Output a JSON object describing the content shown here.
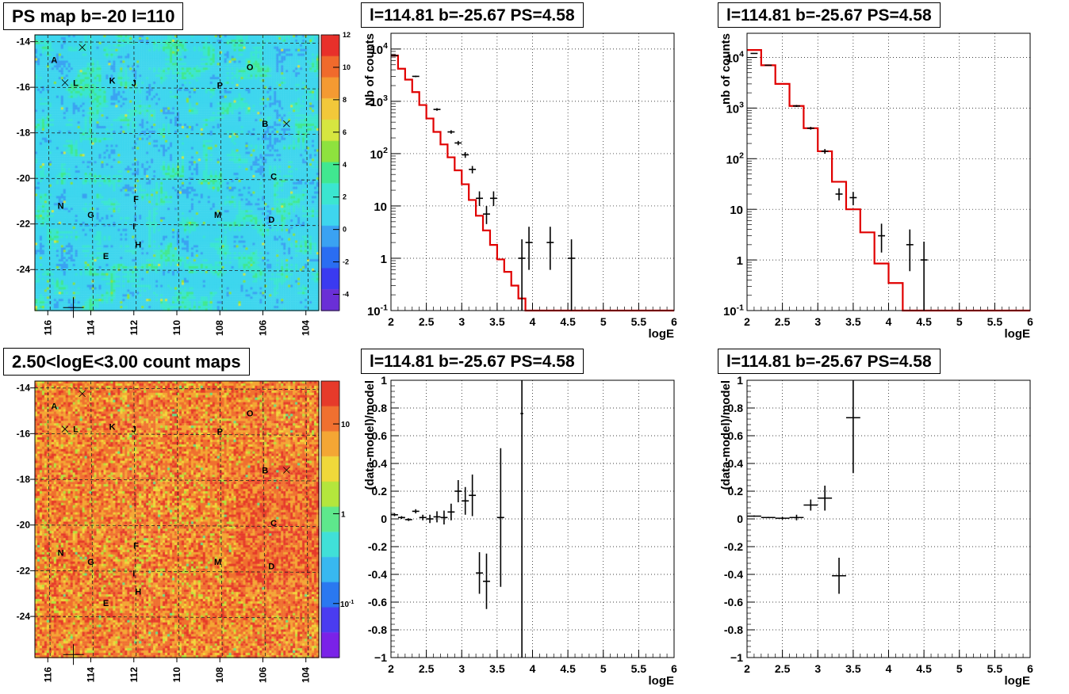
{
  "panels": {
    "ps_map": {
      "title": "PS map b=-20 l=110"
    },
    "count_map": {
      "title": "2.50<logE<3.00 count maps"
    },
    "spec1": {
      "title": "l=114.81 b=-25.67 PS=4.58"
    },
    "spec2": {
      "title": "l=114.81 b=-25.67 PS=4.58"
    },
    "resid1": {
      "title": "l=114.81 b=-25.67 PS=4.58"
    },
    "resid2": {
      "title": "l=114.81 b=-25.67 PS=4.58"
    }
  },
  "map_axes": {
    "x_ticks": [
      "116",
      "114",
      "112",
      "110",
      "108",
      "106",
      "104"
    ],
    "y_ticks": [
      "-14",
      "-16",
      "-18",
      "-20",
      "-22",
      "-24"
    ],
    "ps_colorbar_ticks": [
      "12",
      "10",
      "8",
      "6",
      "4",
      "2",
      "0",
      "-2",
      "-4"
    ],
    "count_colorbar_ticks": [
      "10",
      "1",
      "10"
    ],
    "count_colorbar_exp": "-1",
    "sources": [
      {
        "label": "A",
        "l": 115.7,
        "b": -14.8
      },
      {
        "label": "L",
        "l": 114.7,
        "b": -15.8
      },
      {
        "label": "K",
        "l": 113.0,
        "b": -15.7
      },
      {
        "label": "J",
        "l": 112.0,
        "b": -15.8
      },
      {
        "label": "P",
        "l": 108.0,
        "b": -15.9
      },
      {
        "label": "O",
        "l": 106.6,
        "b": -15.1
      },
      {
        "label": "B",
        "l": 105.9,
        "b": -17.6
      },
      {
        "label": "C",
        "l": 105.5,
        "b": -19.9
      },
      {
        "label": "N",
        "l": 115.4,
        "b": -21.2
      },
      {
        "label": "G",
        "l": 114.0,
        "b": -21.6
      },
      {
        "label": "F",
        "l": 111.9,
        "b": -20.9
      },
      {
        "label": "M",
        "l": 108.1,
        "b": -21.6
      },
      {
        "label": "D",
        "l": 105.6,
        "b": -21.8
      },
      {
        "label": "I",
        "l": 112.0,
        "b": -22.1
      },
      {
        "label": "H",
        "l": 111.8,
        "b": -22.9
      },
      {
        "label": "E",
        "l": 113.3,
        "b": -23.4
      }
    ]
  },
  "chart_data": [
    {
      "type": "line",
      "panel": "spec1",
      "xlabel": "logE",
      "ylabel": "Nb of counts",
      "log_y": true,
      "xlim": [
        2,
        6
      ],
      "ylim": [
        0.1,
        20000
      ],
      "x_ticks": [
        "2",
        "2.5",
        "3",
        "3.5",
        "4",
        "4.5",
        "5",
        "5.5",
        "6"
      ],
      "y_ticks": [
        "10^4",
        "10^3",
        "10^2",
        "10",
        "1",
        "10^-1"
      ],
      "model_step_edges": [
        2.0,
        2.1,
        2.2,
        2.3,
        2.4,
        2.5,
        2.6,
        2.7,
        2.8,
        2.9,
        3.0,
        3.1,
        3.2,
        3.3,
        3.4,
        3.5,
        3.6,
        3.7,
        3.8,
        3.9,
        4.0,
        4.1,
        4.2,
        4.3,
        6.0
      ],
      "model_step_values": [
        7500,
        4200,
        2600,
        1500,
        850,
        470,
        260,
        150,
        85,
        48,
        26,
        13,
        6.5,
        3.4,
        1.8,
        0.95,
        0.55,
        0.3,
        0.17,
        0.1,
        0.1,
        0.1,
        0.1,
        0.1
      ],
      "data_points": [
        {
          "x": 2.05,
          "y": 7500,
          "err_lo": 200,
          "err_hi": 200
        },
        {
          "x": 2.35,
          "y": 3000,
          "err_lo": 100,
          "err_hi": 100
        },
        {
          "x": 2.65,
          "y": 700,
          "err_lo": 40,
          "err_hi": 40
        },
        {
          "x": 2.85,
          "y": 260,
          "err_lo": 20,
          "err_hi": 20
        },
        {
          "x": 2.95,
          "y": 160,
          "err_lo": 15,
          "err_hi": 15
        },
        {
          "x": 3.05,
          "y": 95,
          "err_lo": 12,
          "err_hi": 12
        },
        {
          "x": 3.15,
          "y": 50,
          "err_lo": 8,
          "err_hi": 8
        },
        {
          "x": 3.25,
          "y": 14,
          "err_lo": 4,
          "err_hi": 5
        },
        {
          "x": 3.35,
          "y": 7,
          "err_lo": 2.5,
          "err_hi": 3
        },
        {
          "x": 3.45,
          "y": 14,
          "err_lo": 4,
          "err_hi": 5
        },
        {
          "x": 3.85,
          "y": 1,
          "err_lo": 0.9,
          "err_hi": 1.3
        },
        {
          "x": 3.95,
          "y": 2,
          "err_lo": 1.4,
          "err_hi": 2
        },
        {
          "x": 4.25,
          "y": 2,
          "err_lo": 1.4,
          "err_hi": 2
        },
        {
          "x": 4.55,
          "y": 1,
          "err_lo": 0.9,
          "err_hi": 1.3
        }
      ]
    },
    {
      "type": "line",
      "panel": "spec2",
      "xlabel": "logE",
      "ylabel": "nb of counts",
      "log_y": true,
      "xlim": [
        2,
        6
      ],
      "ylim": [
        0.1,
        30000
      ],
      "x_ticks": [
        "2",
        "2.5",
        "3",
        "3.5",
        "4",
        "4.5",
        "5",
        "5.5",
        "6"
      ],
      "y_ticks": [
        "10^4",
        "10^3",
        "10^2",
        "10",
        "1",
        "10^-1"
      ],
      "model_step_edges": [
        2.0,
        2.2,
        2.4,
        2.6,
        2.8,
        3.0,
        3.2,
        3.4,
        3.6,
        3.8,
        4.0,
        4.2,
        6.0
      ],
      "model_step_values": [
        14000,
        7000,
        3000,
        1100,
        400,
        140,
        35,
        10,
        3.5,
        0.85,
        0.35,
        0.1
      ],
      "data_points": [
        {
          "x": 2.1,
          "y": 12000,
          "err_lo": 200,
          "err_hi": 200
        },
        {
          "x": 2.3,
          "y": 7000,
          "err_lo": 150,
          "err_hi": 150
        },
        {
          "x": 2.7,
          "y": 1100,
          "err_lo": 50,
          "err_hi": 50
        },
        {
          "x": 2.9,
          "y": 400,
          "err_lo": 25,
          "err_hi": 25
        },
        {
          "x": 3.1,
          "y": 140,
          "err_lo": 15,
          "err_hi": 15
        },
        {
          "x": 3.3,
          "y": 20,
          "err_lo": 5,
          "err_hi": 6
        },
        {
          "x": 3.5,
          "y": 17,
          "err_lo": 5,
          "err_hi": 5
        },
        {
          "x": 3.9,
          "y": 3,
          "err_lo": 1.6,
          "err_hi": 2.2
        },
        {
          "x": 4.3,
          "y": 2,
          "err_lo": 1.4,
          "err_hi": 2
        },
        {
          "x": 4.5,
          "y": 1,
          "err_lo": 0.9,
          "err_hi": 1.3
        }
      ]
    },
    {
      "type": "scatter",
      "panel": "resid1",
      "xlabel": "logE",
      "ylabel": "(data-model)/model",
      "xlim": [
        2,
        6
      ],
      "ylim": [
        -1,
        1
      ],
      "x_ticks": [
        "2",
        "2.5",
        "3",
        "3.5",
        "4",
        "4.5",
        "5",
        "5.5",
        "6"
      ],
      "y_ticks": [
        "1",
        "0.8",
        "0.6",
        "0.4",
        "0.2",
        "0",
        "-0.2",
        "-0.4",
        "-0.6",
        "-0.8",
        "-1"
      ],
      "data_points": [
        {
          "x": 2.05,
          "y": 0.03,
          "err": 0.01,
          "xerr": 0.05
        },
        {
          "x": 2.15,
          "y": 0.01,
          "err": 0.01,
          "xerr": 0.05
        },
        {
          "x": 2.25,
          "y": -0.005,
          "err": 0.01,
          "xerr": 0.05
        },
        {
          "x": 2.35,
          "y": 0.055,
          "err": 0.015,
          "xerr": 0.05
        },
        {
          "x": 2.45,
          "y": 0.01,
          "err": 0.02,
          "xerr": 0.05
        },
        {
          "x": 2.55,
          "y": 0.0,
          "err": 0.03,
          "xerr": 0.05
        },
        {
          "x": 2.65,
          "y": 0.015,
          "err": 0.04,
          "xerr": 0.05
        },
        {
          "x": 2.75,
          "y": 0.01,
          "err": 0.05,
          "xerr": 0.05
        },
        {
          "x": 2.85,
          "y": 0.05,
          "err": 0.06,
          "xerr": 0.05
        },
        {
          "x": 2.95,
          "y": 0.2,
          "err": 0.08,
          "xerr": 0.05
        },
        {
          "x": 3.05,
          "y": 0.13,
          "err": 0.1,
          "xerr": 0.05
        },
        {
          "x": 3.15,
          "y": 0.17,
          "err": 0.15,
          "xerr": 0.05
        },
        {
          "x": 3.25,
          "y": -0.39,
          "err": 0.15,
          "xerr": 0.05
        },
        {
          "x": 3.35,
          "y": -0.45,
          "err": 0.2,
          "xerr": 0.05
        },
        {
          "x": 3.55,
          "y": 0.01,
          "err": 0.5,
          "xerr": 0.05
        },
        {
          "x": 3.85,
          "y": 0.76,
          "err": 1.8,
          "xerr": 0.02
        }
      ]
    },
    {
      "type": "scatter",
      "panel": "resid2",
      "xlabel": "logE",
      "ylabel": "(data-model)/model",
      "xlim": [
        2,
        6
      ],
      "ylim": [
        -1,
        1
      ],
      "x_ticks": [
        "2",
        "2.5",
        "3",
        "3.5",
        "4",
        "4.5",
        "5",
        "5.5",
        "6"
      ],
      "y_ticks": [
        "1",
        "0.8",
        "0.6",
        "0.4",
        "0.2",
        "0",
        "-0.2",
        "-0.4",
        "-0.6",
        "-0.8",
        "-1"
      ],
      "data_points": [
        {
          "x": 2.1,
          "y": 0.02,
          "err": 0.005,
          "xerr": 0.1
        },
        {
          "x": 2.3,
          "y": 0.01,
          "err": 0.005,
          "xerr": 0.1
        },
        {
          "x": 2.5,
          "y": 0.005,
          "err": 0.01,
          "xerr": 0.1
        },
        {
          "x": 2.7,
          "y": 0.01,
          "err": 0.02,
          "xerr": 0.1
        },
        {
          "x": 2.9,
          "y": 0.1,
          "err": 0.04,
          "xerr": 0.1
        },
        {
          "x": 3.1,
          "y": 0.15,
          "err": 0.09,
          "xerr": 0.1
        },
        {
          "x": 3.3,
          "y": -0.41,
          "err": 0.13,
          "xerr": 0.1
        },
        {
          "x": 3.5,
          "y": 0.73,
          "err": 0.4,
          "xerr": 0.1
        }
      ]
    }
  ]
}
